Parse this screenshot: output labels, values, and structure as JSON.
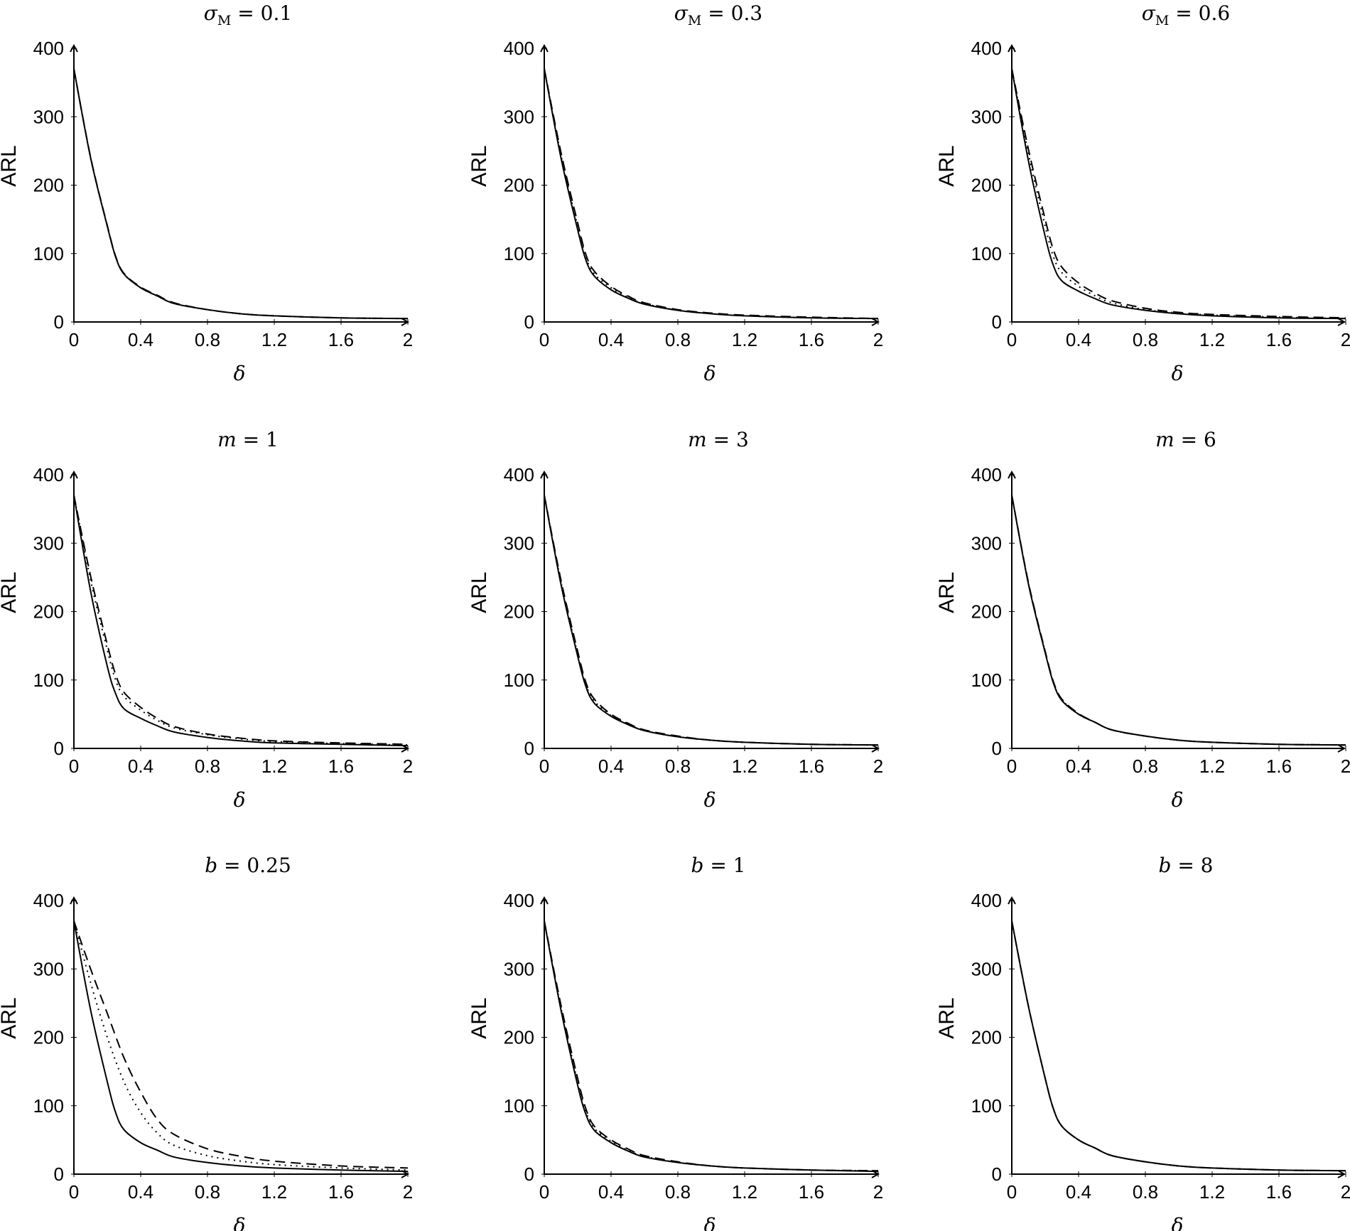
{
  "chart_data": [
    {
      "type": "line",
      "title": {
        "var": "σ",
        "sub": "M",
        "rest": " = 0.1"
      },
      "xlabel": "δ",
      "ylabel": "ARL",
      "xlim": [
        0,
        2
      ],
      "ylim": [
        0,
        400
      ],
      "xticks": [
        "0",
        "0.4",
        "0.8",
        "1.2",
        "1.6",
        "2"
      ],
      "yticks": [
        "0",
        "100",
        "200",
        "300",
        "400"
      ],
      "grid": false,
      "series": [
        {
          "style": "solid",
          "x": [
            0,
            0.1,
            0.2,
            0.25,
            0.3,
            0.4,
            0.5,
            0.6,
            0.8,
            1.0,
            1.2,
            1.6,
            2.0
          ],
          "y": [
            370,
            240,
            140,
            95,
            70,
            50,
            38,
            27,
            18,
            12,
            9,
            6,
            5
          ]
        },
        {
          "style": "dashed",
          "x": [
            0,
            0.1,
            0.2,
            0.25,
            0.3,
            0.4,
            0.5,
            0.6,
            0.8,
            1.0,
            1.2,
            1.6,
            2.0
          ],
          "y": [
            370,
            241,
            141,
            96,
            71,
            51,
            39,
            28,
            18,
            12,
            9,
            6,
            5
          ]
        },
        {
          "style": "dotted",
          "x": [
            0,
            0.1,
            0.2,
            0.25,
            0.3,
            0.4,
            0.5,
            0.6,
            0.8,
            1.0,
            1.2,
            1.6,
            2.0
          ],
          "y": [
            370,
            240,
            140,
            95,
            70,
            50,
            38,
            27,
            18,
            12,
            9,
            6,
            5
          ]
        }
      ]
    },
    {
      "type": "line",
      "title": {
        "var": "σ",
        "sub": "M",
        "rest": " = 0.3"
      },
      "xlabel": "δ",
      "ylabel": "ARL",
      "xlim": [
        0,
        2
      ],
      "ylim": [
        0,
        400
      ],
      "xticks": [
        "0",
        "0.4",
        "0.8",
        "1.2",
        "1.6",
        "2"
      ],
      "yticks": [
        "0",
        "100",
        "200",
        "300",
        "400"
      ],
      "grid": false,
      "series": [
        {
          "style": "solid",
          "x": [
            0,
            0.1,
            0.2,
            0.25,
            0.3,
            0.4,
            0.5,
            0.6,
            0.8,
            1.0,
            1.2,
            1.6,
            2.0
          ],
          "y": [
            370,
            240,
            135,
            90,
            67,
            47,
            35,
            26,
            17,
            12,
            9,
            6,
            5
          ]
        },
        {
          "style": "dashed",
          "x": [
            0,
            0.1,
            0.2,
            0.25,
            0.3,
            0.4,
            0.5,
            0.6,
            0.8,
            1.0,
            1.2,
            1.6,
            2.0
          ],
          "y": [
            370,
            248,
            145,
            98,
            74,
            52,
            38,
            28,
            18,
            13,
            10,
            7,
            5
          ]
        },
        {
          "style": "dotted",
          "x": [
            0,
            0.1,
            0.2,
            0.25,
            0.3,
            0.4,
            0.5,
            0.6,
            0.8,
            1.0,
            1.2,
            1.6,
            2.0
          ],
          "y": [
            370,
            244,
            140,
            94,
            70,
            50,
            36,
            27,
            17,
            12,
            9,
            6,
            5
          ]
        }
      ]
    },
    {
      "type": "line",
      "title": {
        "var": "σ",
        "sub": "M",
        "rest": " = 0.6"
      },
      "xlabel": "δ",
      "ylabel": "ARL",
      "xlim": [
        0,
        2
      ],
      "ylim": [
        0,
        400
      ],
      "xticks": [
        "0",
        "0.4",
        "0.8",
        "1.2",
        "1.6",
        "2"
      ],
      "yticks": [
        "0",
        "100",
        "200",
        "300",
        "400"
      ],
      "grid": false,
      "series": [
        {
          "style": "solid",
          "x": [
            0,
            0.1,
            0.2,
            0.25,
            0.3,
            0.4,
            0.5,
            0.6,
            0.8,
            1.0,
            1.2,
            1.6,
            2.0
          ],
          "y": [
            370,
            235,
            125,
            82,
            60,
            45,
            34,
            25,
            17,
            12,
            9,
            6,
            5
          ]
        },
        {
          "style": "dashed",
          "x": [
            0,
            0.1,
            0.2,
            0.25,
            0.3,
            0.4,
            0.5,
            0.6,
            0.8,
            1.0,
            1.2,
            1.6,
            2.0
          ],
          "y": [
            370,
            252,
            150,
            105,
            80,
            57,
            42,
            31,
            20,
            14,
            11,
            8,
            6
          ]
        },
        {
          "style": "dotted",
          "x": [
            0,
            0.1,
            0.2,
            0.25,
            0.3,
            0.4,
            0.5,
            0.6,
            0.8,
            1.0,
            1.2,
            1.6,
            2.0
          ],
          "y": [
            370,
            246,
            140,
            95,
            72,
            52,
            38,
            28,
            18,
            13,
            10,
            7,
            5
          ]
        }
      ]
    },
    {
      "type": "line",
      "title": {
        "var": "m",
        "sub": "",
        "rest": " = 1"
      },
      "xlabel": "δ",
      "ylabel": "ARL",
      "xlim": [
        0,
        2
      ],
      "ylim": [
        0,
        400
      ],
      "xticks": [
        "0",
        "0.4",
        "0.8",
        "1.2",
        "1.6",
        "2"
      ],
      "yticks": [
        "0",
        "100",
        "200",
        "300",
        "400"
      ],
      "grid": false,
      "series": [
        {
          "style": "solid",
          "x": [
            0,
            0.1,
            0.2,
            0.25,
            0.3,
            0.4,
            0.5,
            0.6,
            0.8,
            1.0,
            1.2,
            1.6,
            2.0
          ],
          "y": [
            370,
            230,
            120,
            80,
            58,
            44,
            33,
            24,
            16,
            11,
            8,
            6,
            4
          ]
        },
        {
          "style": "dashed",
          "x": [
            0,
            0.1,
            0.2,
            0.25,
            0.3,
            0.4,
            0.5,
            0.6,
            0.8,
            1.0,
            1.2,
            1.6,
            2.0
          ],
          "y": [
            370,
            252,
            152,
            108,
            82,
            60,
            44,
            32,
            21,
            15,
            11,
            8,
            6
          ]
        },
        {
          "style": "dotted",
          "x": [
            0,
            0.1,
            0.2,
            0.25,
            0.3,
            0.4,
            0.5,
            0.6,
            0.8,
            1.0,
            1.2,
            1.6,
            2.0
          ],
          "y": [
            370,
            246,
            144,
            100,
            76,
            56,
            41,
            30,
            20,
            14,
            10,
            7,
            5
          ]
        }
      ]
    },
    {
      "type": "line",
      "title": {
        "var": "m",
        "sub": "",
        "rest": " = 3"
      },
      "xlabel": "δ",
      "ylabel": "ARL",
      "xlim": [
        0,
        2
      ],
      "ylim": [
        0,
        400
      ],
      "xticks": [
        "0",
        "0.4",
        "0.8",
        "1.2",
        "1.6",
        "2"
      ],
      "yticks": [
        "0",
        "100",
        "200",
        "300",
        "400"
      ],
      "grid": false,
      "series": [
        {
          "style": "solid",
          "x": [
            0,
            0.1,
            0.2,
            0.25,
            0.3,
            0.4,
            0.5,
            0.6,
            0.8,
            1.0,
            1.2,
            1.6,
            2.0
          ],
          "y": [
            370,
            240,
            135,
            90,
            66,
            47,
            35,
            26,
            17,
            12,
            9,
            6,
            5
          ]
        },
        {
          "style": "dashed",
          "x": [
            0,
            0.1,
            0.2,
            0.25,
            0.3,
            0.4,
            0.5,
            0.6,
            0.8,
            1.0,
            1.2,
            1.6,
            2.0
          ],
          "y": [
            370,
            246,
            142,
            96,
            72,
            50,
            37,
            27,
            18,
            12,
            9,
            6,
            5
          ]
        },
        {
          "style": "dotted",
          "x": [
            0,
            0.1,
            0.2,
            0.25,
            0.3,
            0.4,
            0.5,
            0.6,
            0.8,
            1.0,
            1.2,
            1.6,
            2.0
          ],
          "y": [
            370,
            243,
            138,
            93,
            69,
            48,
            36,
            26,
            17,
            12,
            9,
            6,
            5
          ]
        }
      ]
    },
    {
      "type": "line",
      "title": {
        "var": "m",
        "sub": "",
        "rest": " = 6"
      },
      "xlabel": "δ",
      "ylabel": "ARL",
      "xlim": [
        0,
        2
      ],
      "ylim": [
        0,
        400
      ],
      "xticks": [
        "0",
        "0.4",
        "0.8",
        "1.2",
        "1.6",
        "2"
      ],
      "yticks": [
        "0",
        "100",
        "200",
        "300",
        "400"
      ],
      "grid": false,
      "series": [
        {
          "style": "solid",
          "x": [
            0,
            0.1,
            0.2,
            0.25,
            0.3,
            0.4,
            0.5,
            0.6,
            0.8,
            1.0,
            1.2,
            1.6,
            2.0
          ],
          "y": [
            370,
            240,
            140,
            95,
            70,
            50,
            38,
            27,
            18,
            12,
            9,
            6,
            5
          ]
        },
        {
          "style": "dashed",
          "x": [
            0,
            0.1,
            0.2,
            0.25,
            0.3,
            0.4,
            0.5,
            0.6,
            0.8,
            1.0,
            1.2,
            1.6,
            2.0
          ],
          "y": [
            370,
            242,
            142,
            97,
            72,
            51,
            38,
            27,
            18,
            12,
            9,
            6,
            5
          ]
        },
        {
          "style": "dotted",
          "x": [
            0,
            0.1,
            0.2,
            0.25,
            0.3,
            0.4,
            0.5,
            0.6,
            0.8,
            1.0,
            1.2,
            1.6,
            2.0
          ],
          "y": [
            370,
            241,
            141,
            96,
            71,
            50,
            38,
            27,
            18,
            12,
            9,
            6,
            5
          ]
        }
      ]
    },
    {
      "type": "line",
      "title": {
        "var": "b",
        "sub": "",
        "rest": " = 0.25"
      },
      "xlabel": "δ",
      "ylabel": "ARL",
      "xlim": [
        0,
        2
      ],
      "ylim": [
        0,
        400
      ],
      "xticks": [
        "0",
        "0.4",
        "0.8",
        "1.2",
        "1.6",
        "2"
      ],
      "yticks": [
        "0",
        "100",
        "200",
        "300",
        "400"
      ],
      "grid": false,
      "series": [
        {
          "style": "solid",
          "x": [
            0,
            0.1,
            0.2,
            0.25,
            0.3,
            0.4,
            0.5,
            0.6,
            0.8,
            1.0,
            1.2,
            1.6,
            2.0
          ],
          "y": [
            370,
            240,
            135,
            90,
            65,
            46,
            35,
            25,
            17,
            12,
            9,
            6,
            4
          ]
        },
        {
          "style": "dashed",
          "x": [
            0,
            0.1,
            0.2,
            0.3,
            0.4,
            0.5,
            0.6,
            0.8,
            1.0,
            1.2,
            1.6,
            2.0
          ],
          "y": [
            370,
            300,
            235,
            170,
            120,
            80,
            58,
            37,
            26,
            19,
            12,
            9
          ]
        },
        {
          "style": "dotted",
          "x": [
            0,
            0.1,
            0.2,
            0.3,
            0.4,
            0.5,
            0.6,
            0.8,
            1.0,
            1.2,
            1.6,
            2.0
          ],
          "y": [
            370,
            280,
            200,
            135,
            90,
            60,
            42,
            27,
            19,
            14,
            9,
            6
          ]
        }
      ]
    },
    {
      "type": "line",
      "title": {
        "var": "b",
        "sub": "",
        "rest": " = 1"
      },
      "xlabel": "δ",
      "ylabel": "ARL",
      "xlim": [
        0,
        2
      ],
      "ylim": [
        0,
        400
      ],
      "xticks": [
        "0",
        "0.4",
        "0.8",
        "1.2",
        "1.6",
        "2"
      ],
      "yticks": [
        "0",
        "100",
        "200",
        "300",
        "400"
      ],
      "grid": false,
      "series": [
        {
          "style": "solid",
          "x": [
            0,
            0.1,
            0.2,
            0.25,
            0.3,
            0.4,
            0.5,
            0.6,
            0.8,
            1.0,
            1.2,
            1.6,
            2.0
          ],
          "y": [
            370,
            240,
            130,
            87,
            64,
            46,
            34,
            25,
            17,
            12,
            9,
            6,
            4
          ]
        },
        {
          "style": "dashed",
          "x": [
            0,
            0.1,
            0.2,
            0.25,
            0.3,
            0.4,
            0.5,
            0.6,
            0.8,
            1.0,
            1.2,
            1.6,
            2.0
          ],
          "y": [
            370,
            247,
            140,
            95,
            70,
            50,
            37,
            27,
            18,
            12,
            9,
            6,
            5
          ]
        },
        {
          "style": "dotted",
          "x": [
            0,
            0.1,
            0.2,
            0.25,
            0.3,
            0.4,
            0.5,
            0.6,
            0.8,
            1.0,
            1.2,
            1.6,
            2.0
          ],
          "y": [
            370,
            243,
            135,
            91,
            67,
            48,
            35,
            26,
            17,
            12,
            9,
            6,
            5
          ]
        }
      ]
    },
    {
      "type": "line",
      "title": {
        "var": "b",
        "sub": "",
        "rest": " = 8"
      },
      "xlabel": "δ",
      "ylabel": "ARL",
      "xlim": [
        0,
        2
      ],
      "ylim": [
        0,
        400
      ],
      "xticks": [
        "0",
        "0.4",
        "0.8",
        "1.2",
        "1.6",
        "2"
      ],
      "yticks": [
        "0",
        "100",
        "200",
        "300",
        "400"
      ],
      "grid": false,
      "series": [
        {
          "style": "solid",
          "x": [
            0,
            0.1,
            0.2,
            0.25,
            0.3,
            0.4,
            0.5,
            0.6,
            0.8,
            1.0,
            1.2,
            1.6,
            2.0
          ],
          "y": [
            370,
            245,
            140,
            95,
            70,
            50,
            38,
            27,
            18,
            12,
            9,
            6,
            5
          ]
        },
        {
          "style": "dashed",
          "x": [
            0,
            0.1,
            0.2,
            0.25,
            0.3,
            0.4,
            0.5,
            0.6,
            0.8,
            1.0,
            1.2,
            1.6,
            2.0
          ],
          "y": [
            370,
            245,
            140,
            95,
            70,
            50,
            38,
            27,
            18,
            12,
            9,
            6,
            5
          ]
        },
        {
          "style": "dotted",
          "x": [
            0,
            0.1,
            0.2,
            0.25,
            0.3,
            0.4,
            0.5,
            0.6,
            0.8,
            1.0,
            1.2,
            1.6,
            2.0
          ],
          "y": [
            370,
            245,
            140,
            95,
            70,
            50,
            38,
            27,
            18,
            12,
            9,
            6,
            5
          ]
        }
      ]
    }
  ]
}
